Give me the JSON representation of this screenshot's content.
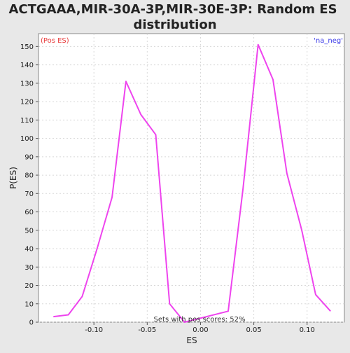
{
  "chart_data": {
    "type": "line",
    "title_lines": [
      "ACTGAAA,MIR-30A-3P,MIR-30E-3P: Random ES",
      "distribution"
    ],
    "xlabel": "ES",
    "ylabel": "P(ES)",
    "xlim": [
      -0.152,
      0.135
    ],
    "ylim": [
      0,
      157
    ],
    "x_ticks": [
      -0.1,
      -0.05,
      0.0,
      0.05,
      0.1
    ],
    "x_tick_labels": [
      "-0.10",
      "-0.05",
      "0.00",
      "0.05",
      "0.10"
    ],
    "y_ticks": [
      0,
      10,
      20,
      30,
      40,
      50,
      60,
      70,
      80,
      90,
      100,
      110,
      120,
      130,
      140,
      150
    ],
    "y_tick_labels": [
      "0",
      "10",
      "20",
      "30",
      "40",
      "50",
      "60",
      "70",
      "80",
      "90",
      "100",
      "110",
      "120",
      "130",
      "140",
      "150"
    ],
    "grid": true,
    "series": [
      {
        "color": "#ee44ee",
        "x": [
          -0.138,
          -0.124,
          -0.111,
          -0.097,
          -0.083,
          -0.07,
          -0.056,
          -0.042,
          -0.029,
          -0.015,
          0.026,
          0.04,
          0.054,
          0.068,
          0.081,
          0.095,
          0.108,
          0.122
        ],
        "y": [
          3,
          4,
          14,
          40,
          68,
          131,
          113,
          102,
          10,
          0,
          6,
          73,
          151,
          132,
          81,
          50,
          15,
          6
        ]
      }
    ],
    "corner_labels": {
      "left": "(Pos ES)",
      "left_color": "#e83c3c",
      "right": "'na_neg'",
      "right_color": "#3c3ce8"
    },
    "annotation": "Sets with pos scores: 52%"
  }
}
